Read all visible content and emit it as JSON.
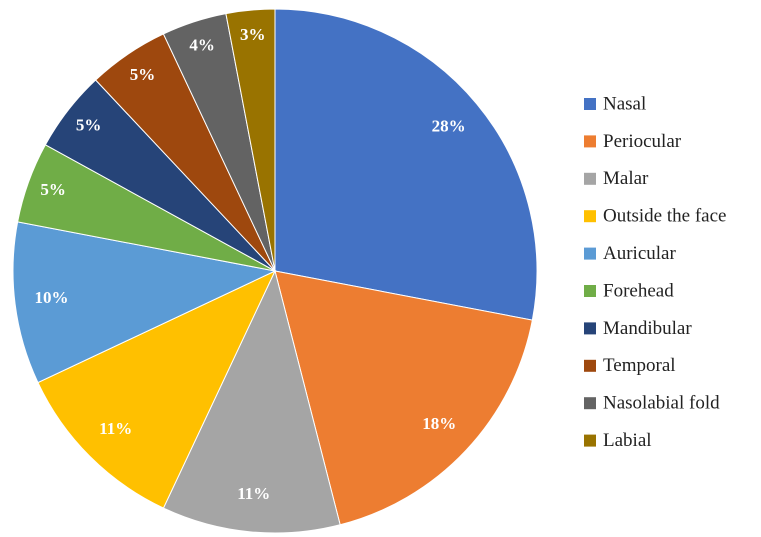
{
  "chart_data": {
    "type": "pie",
    "categories": [
      "Nasal",
      "Periocular",
      "Malar",
      "Outside the face",
      "Auricular",
      "Forehead",
      "Mandibular",
      "Temporal",
      "Nasolabial fold",
      "Labial"
    ],
    "values": [
      28,
      18,
      11,
      11,
      10,
      5,
      5,
      5,
      4,
      3
    ],
    "value_labels": [
      "28%",
      "18%",
      "11%",
      "11%",
      "10%",
      "5%",
      "5%",
      "5%",
      "4%",
      "3%"
    ],
    "colors": [
      "#4472c4",
      "#ed7d31",
      "#a5a5a5",
      "#ffc000",
      "#5b9bd5",
      "#70ad47",
      "#264478",
      "#9e480e",
      "#636363",
      "#997300"
    ],
    "legend": "right"
  }
}
